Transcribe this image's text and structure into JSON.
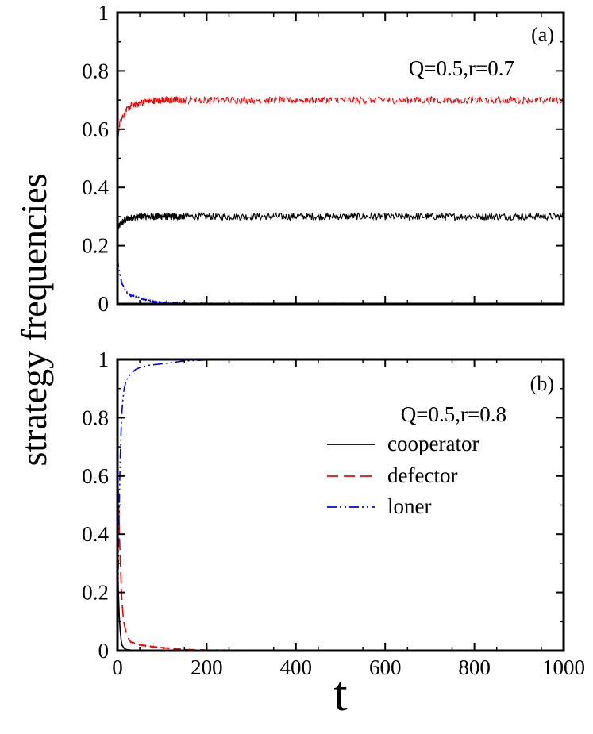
{
  "figure": {
    "ylabel": "strategy frequencies",
    "xlabel": "t"
  },
  "colors": {
    "cooperator": "#000000",
    "defector": "#ff0000",
    "loner": "#0000ff",
    "axis": "#000000"
  },
  "legend": {
    "placement": "right, lower panel",
    "entries": [
      {
        "key": "cooperator",
        "label": "cooperator",
        "dash": "solid"
      },
      {
        "key": "defector",
        "label": "defector",
        "dash": "dashed"
      },
      {
        "key": "loner",
        "label": "loner",
        "dash": "dash-dot"
      }
    ]
  },
  "chart_data": [
    {
      "type": "line",
      "panel_label": "(a)",
      "annotation": "Q=0.5,r=0.7",
      "xlim": [
        0,
        1000
      ],
      "ylim": [
        0,
        1
      ],
      "xticks": [
        0,
        200,
        400,
        600,
        800,
        1000
      ],
      "xtick_labels": [],
      "yticks": [
        0,
        0.2,
        0.4,
        0.6,
        0.8,
        1
      ],
      "ytick_labels": [
        "0",
        "0.2",
        "0.4",
        "0.6",
        "0.8",
        "1"
      ],
      "series": [
        {
          "name": "cooperator",
          "x": [
            0,
            2,
            5,
            10,
            20,
            30,
            50,
            100,
            200,
            400,
            600,
            800,
            1000
          ],
          "y": [
            0.25,
            0.26,
            0.27,
            0.28,
            0.29,
            0.295,
            0.3,
            0.3,
            0.3,
            0.3,
            0.3,
            0.3,
            0.3
          ],
          "noise": 0.012
        },
        {
          "name": "defector",
          "x": [
            0,
            1,
            3,
            5,
            10,
            20,
            30,
            50,
            75,
            100,
            200,
            400,
            600,
            800,
            1000
          ],
          "y": [
            0.45,
            0.55,
            0.6,
            0.62,
            0.64,
            0.665,
            0.68,
            0.69,
            0.698,
            0.7,
            0.7,
            0.7,
            0.7,
            0.7,
            0.7
          ],
          "noise": 0.012
        },
        {
          "name": "loner",
          "x": [
            0,
            3,
            10,
            20,
            30,
            40,
            60,
            80,
            100,
            150,
            200,
            400,
            600,
            800,
            1000
          ],
          "y": [
            0.16,
            0.12,
            0.07,
            0.04,
            0.03,
            0.025,
            0.015,
            0.008,
            0.004,
            0.002,
            0.001,
            0,
            0,
            0,
            0
          ],
          "noise": 0.002
        }
      ]
    },
    {
      "type": "line",
      "panel_label": "(b)",
      "annotation": "Q=0.5,r=0.8",
      "xlim": [
        0,
        1000
      ],
      "ylim": [
        0,
        1
      ],
      "xticks": [
        0,
        200,
        400,
        600,
        800,
        1000
      ],
      "xtick_labels": [
        "0",
        "200",
        "400",
        "600",
        "800",
        "1000"
      ],
      "yticks": [
        0,
        0.2,
        0.4,
        0.6,
        0.8,
        1
      ],
      "ytick_labels": [
        "0",
        "0.2",
        "0.4",
        "0.6",
        "0.8",
        "1"
      ],
      "series": [
        {
          "name": "cooperator",
          "x": [
            0,
            2,
            4,
            6,
            8,
            10,
            15,
            20,
            30,
            50,
            100,
            1000
          ],
          "y": [
            0.33,
            0.2,
            0.12,
            0.07,
            0.04,
            0.02,
            0.008,
            0.004,
            0.002,
            0.001,
            0,
            0
          ],
          "noise": 0.0
        },
        {
          "name": "defector",
          "x": [
            0,
            2,
            4,
            6,
            8,
            10,
            12,
            15,
            20,
            25,
            30,
            40,
            50,
            60,
            70,
            80,
            100,
            150,
            200,
            300,
            1000
          ],
          "y": [
            0.67,
            0.55,
            0.42,
            0.32,
            0.24,
            0.17,
            0.13,
            0.09,
            0.06,
            0.04,
            0.03,
            0.024,
            0.02,
            0.018,
            0.016,
            0.013,
            0.01,
            0.004,
            0.002,
            0.001,
            0.001
          ],
          "noise": 0.001
        },
        {
          "name": "loner",
          "x": [
            0,
            2,
            4,
            6,
            8,
            10,
            12,
            15,
            20,
            30,
            40,
            50,
            70,
            100,
            150,
            200,
            1000
          ],
          "y": [
            0.05,
            0.3,
            0.5,
            0.65,
            0.75,
            0.82,
            0.86,
            0.9,
            0.93,
            0.95,
            0.965,
            0.972,
            0.98,
            0.985,
            0.995,
            0.998,
            0.999
          ],
          "noise": 0.0
        }
      ]
    }
  ]
}
